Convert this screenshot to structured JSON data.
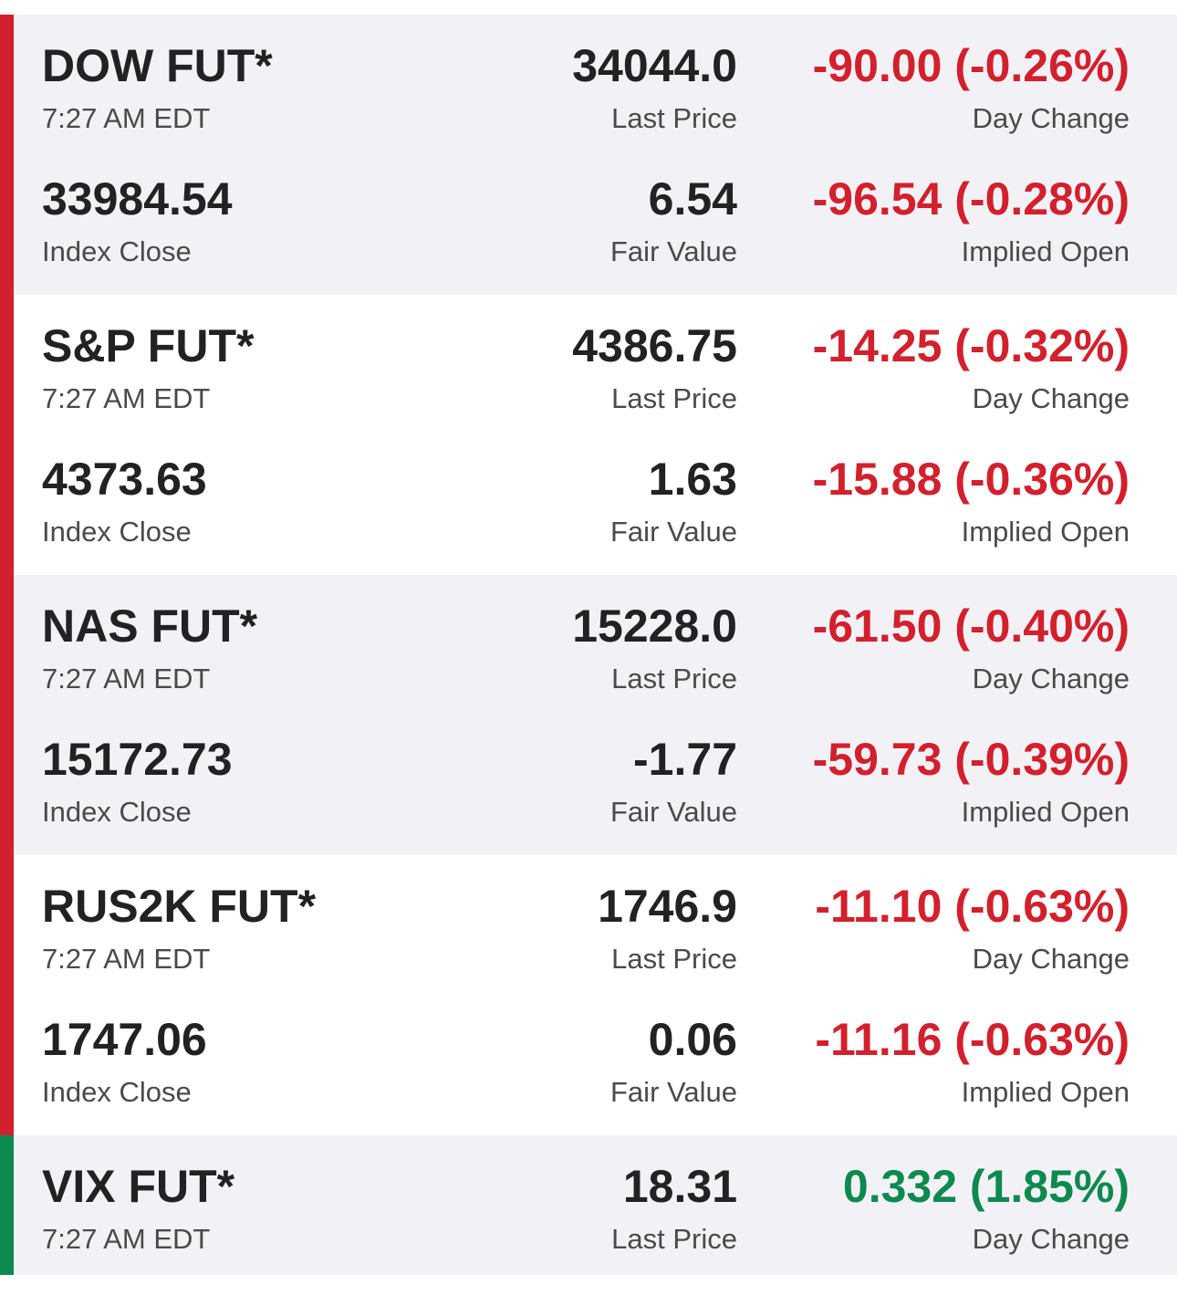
{
  "futures": [
    {
      "name": "DOW FUT*",
      "time": "7:27 AM EDT",
      "last_price": "34044.0",
      "last_price_label": "Last Price",
      "day_change": "-90.00 (-0.26%)",
      "day_change_label": "Day Change",
      "index_close": "33984.54",
      "index_close_label": "Index Close",
      "fair_value": "6.54",
      "fair_value_label": "Fair Value",
      "implied_open": "-96.54 (-0.28%)",
      "implied_open_label": "Implied Open",
      "direction": "down"
    },
    {
      "name": "S&P FUT*",
      "time": "7:27 AM EDT",
      "last_price": "4386.75",
      "last_price_label": "Last Price",
      "day_change": "-14.25 (-0.32%)",
      "day_change_label": "Day Change",
      "index_close": "4373.63",
      "index_close_label": "Index Close",
      "fair_value": "1.63",
      "fair_value_label": "Fair Value",
      "implied_open": "-15.88 (-0.36%)",
      "implied_open_label": "Implied Open",
      "direction": "down"
    },
    {
      "name": "NAS FUT*",
      "time": "7:27 AM EDT",
      "last_price": "15228.0",
      "last_price_label": "Last Price",
      "day_change": "-61.50 (-0.40%)",
      "day_change_label": "Day Change",
      "index_close": "15172.73",
      "index_close_label": "Index Close",
      "fair_value": "-1.77",
      "fair_value_label": "Fair Value",
      "implied_open": "-59.73 (-0.39%)",
      "implied_open_label": "Implied Open",
      "direction": "down"
    },
    {
      "name": "RUS2K FUT*",
      "time": "7:27 AM EDT",
      "last_price": "1746.9",
      "last_price_label": "Last Price",
      "day_change": "-11.10 (-0.63%)",
      "day_change_label": "Day Change",
      "index_close": "1747.06",
      "index_close_label": "Index Close",
      "fair_value": "0.06",
      "fair_value_label": "Fair Value",
      "implied_open": "-11.16 (-0.63%)",
      "implied_open_label": "Implied Open",
      "direction": "down"
    },
    {
      "name": "VIX FUT*",
      "time": "7:27 AM EDT",
      "last_price": "18.31",
      "last_price_label": "Last Price",
      "day_change": "0.332 (1.85%)",
      "day_change_label": "Day Change",
      "direction": "up"
    }
  ],
  "colors": {
    "negative": "#d3202d",
    "positive": "#0d8a4f",
    "shaded_row": "#f2f2f6"
  }
}
